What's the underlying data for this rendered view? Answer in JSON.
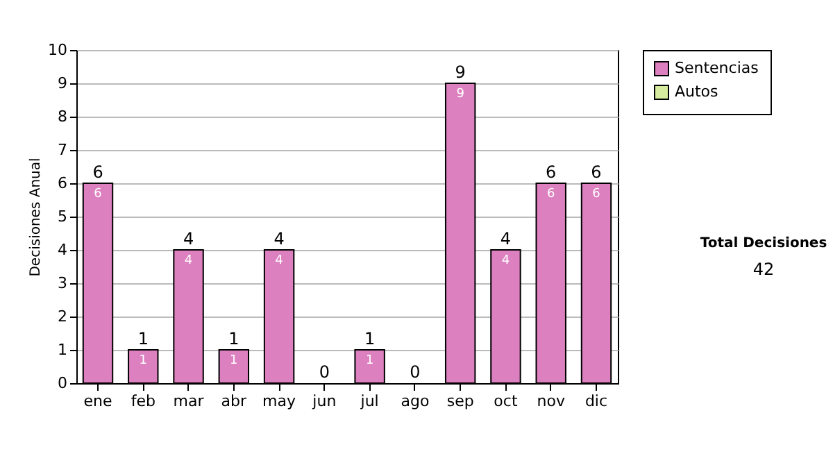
{
  "chart_data": {
    "type": "bar",
    "stacked": true,
    "ylabel": "Decisiones Anual",
    "categories": [
      "ene",
      "feb",
      "mar",
      "abr",
      "may",
      "jun",
      "jul",
      "ago",
      "sep",
      "oct",
      "nov",
      "dic"
    ],
    "series": [
      {
        "name": "Sentencias",
        "color": "#dd80bf",
        "values": [
          6,
          1,
          4,
          1,
          4,
          0,
          1,
          0,
          9,
          4,
          6,
          6
        ],
        "value_labels": [
          "6",
          "1",
          "4",
          "1",
          "4",
          null,
          "1",
          null,
          "9",
          "4",
          "6",
          "6"
        ]
      },
      {
        "name": "Autos",
        "color": "#d8eca0",
        "values": [
          0,
          0,
          0,
          0,
          0,
          0,
          0,
          0,
          0,
          0,
          0,
          0
        ]
      }
    ],
    "totals": [
      "6",
      "1",
      "4",
      "1",
      "4",
      "0",
      "1",
      "0",
      "9",
      "4",
      "6",
      "6"
    ],
    "ylim": [
      0,
      10
    ],
    "yticks": [
      0,
      1,
      2,
      3,
      4,
      5,
      6,
      7,
      8,
      9,
      10
    ],
    "grid": "y",
    "legend": "right",
    "annotations": [
      "Total Decisiones",
      "42"
    ]
  }
}
